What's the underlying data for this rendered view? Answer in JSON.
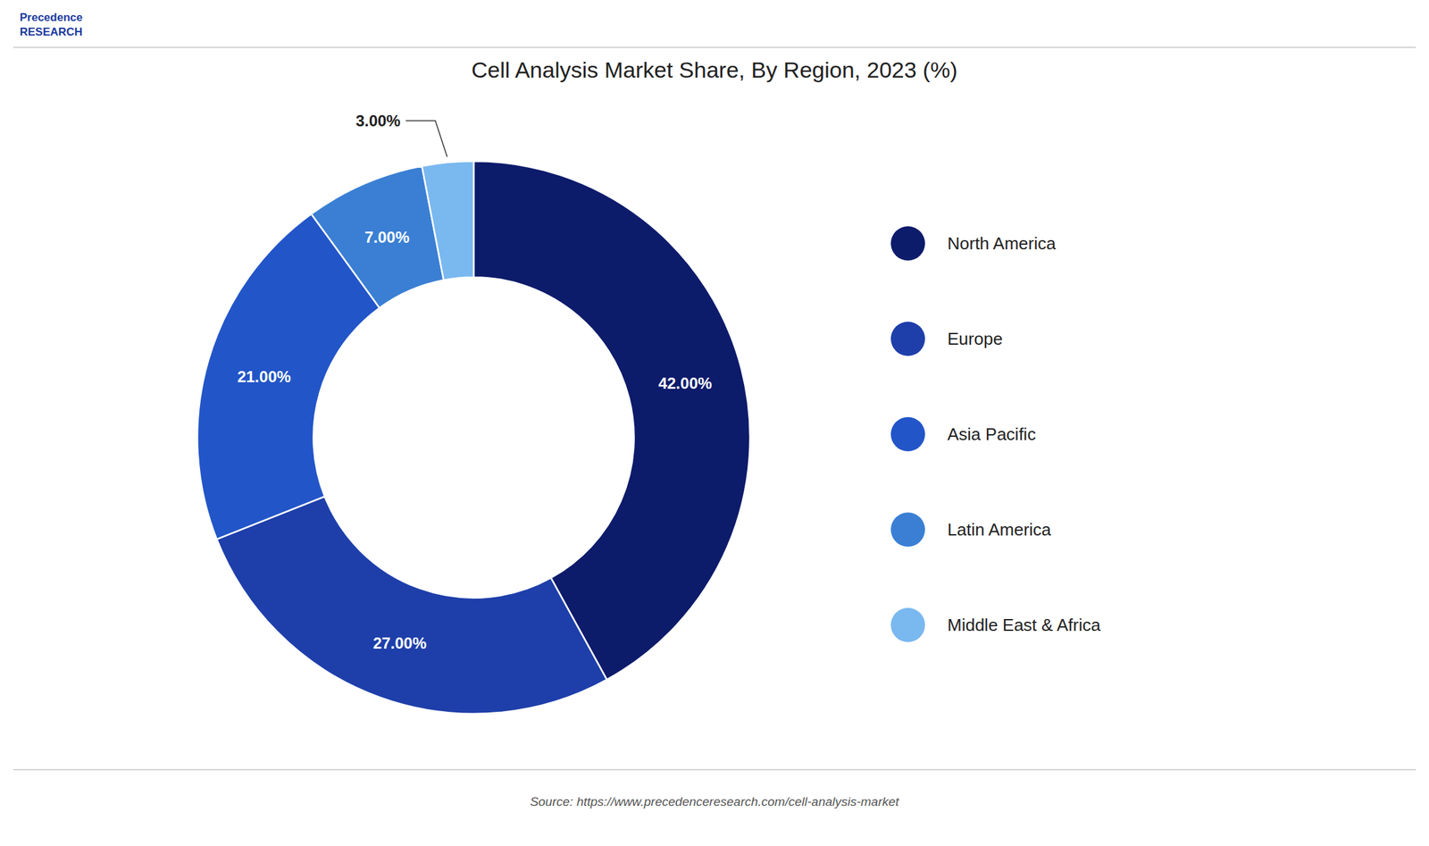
{
  "chart_data": {
    "type": "donut",
    "title": "Cell Analysis Market Share, By Region, 2023 (%)",
    "source": "Source: https://www.precedenceresearch.com/cell-analysis-market",
    "annotations": [
      "Precedence",
      "RESEARCH"
    ],
    "categories": [
      "North America",
      "Europe",
      "Asia Pacific",
      "Latin America",
      "Middle East & Africa"
    ],
    "values": [
      42.0,
      27.0,
      21.0,
      7.0,
      3.0
    ],
    "value_labels": [
      "42.00%",
      "27.00%",
      "21.00%",
      "7.00%",
      "3.00%"
    ],
    "colors": [
      "#0d1b6b",
      "#1e3faa",
      "#2255c8",
      "#3a7fd4",
      "#7ab8f0"
    ],
    "data_labels": true,
    "legend": "right"
  }
}
